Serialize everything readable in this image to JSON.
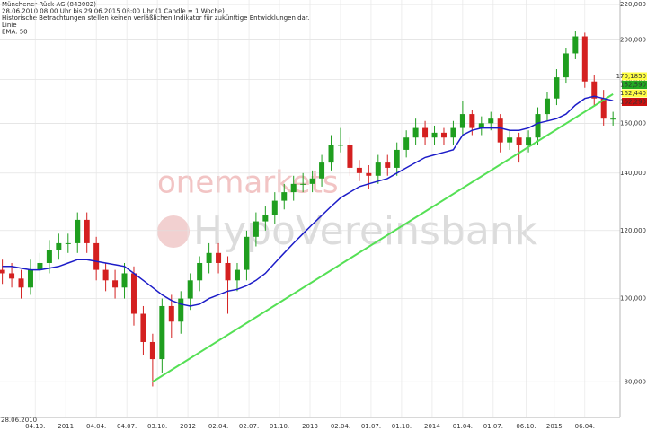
{
  "chart_data": {
    "type": "candlestick",
    "header": [
      "Münchener Rück AG (843002)",
      "28.06.2010 08:00 Uhr bis 29.06.2015 08:00 Uhr (1 Candle = 1 Woche)",
      "Historische Betrachtungen stellen keinen verläßlichen Indikator für zukünftige Entwicklungen dar.",
      "Linie",
      "EMA: 50"
    ],
    "watermark": [
      "onemarkets",
      "HypoVereinsbank"
    ],
    "x_start_label": "28.06.2010",
    "log_scale": true,
    "grid": true,
    "xlim": [
      -1,
      263
    ],
    "ylim": [
      72.7,
      222.7
    ],
    "xticks": [
      {
        "value": 14,
        "label": "04.10."
      },
      {
        "value": 27,
        "label": "2011"
      },
      {
        "value": 40,
        "label": "04.04."
      },
      {
        "value": 53,
        "label": "04.07."
      },
      {
        "value": 66,
        "label": "03.10."
      },
      {
        "value": 79,
        "label": "2012"
      },
      {
        "value": 92,
        "label": "02.04."
      },
      {
        "value": 105,
        "label": "02.07."
      },
      {
        "value": 118,
        "label": "01.10."
      },
      {
        "value": 131,
        "label": "2013"
      },
      {
        "value": 144,
        "label": "02.04."
      },
      {
        "value": 157,
        "label": "01.07."
      },
      {
        "value": 170,
        "label": "01.10."
      },
      {
        "value": 183,
        "label": "2014"
      },
      {
        "value": 196,
        "label": "01.04."
      },
      {
        "value": 209,
        "label": "01.07."
      },
      {
        "value": 223,
        "label": "06.10."
      },
      {
        "value": 235,
        "label": "2015"
      },
      {
        "value": 248,
        "label": "06.04."
      }
    ],
    "yticks": [
      {
        "value": 80,
        "label": "80,000"
      },
      {
        "value": 100,
        "label": "100,000"
      },
      {
        "value": 120,
        "label": "120,000"
      },
      {
        "value": 140,
        "label": "140,000"
      },
      {
        "value": 160,
        "label": "160,000"
      },
      {
        "value": 180,
        "label": "180,000"
      },
      {
        "value": 200,
        "label": "200,000"
      },
      {
        "value": 220,
        "label": "220,000"
      }
    ],
    "x": [
      0,
      4,
      8,
      12,
      16,
      20,
      24,
      28,
      32,
      36,
      40,
      44,
      48,
      52,
      56,
      60,
      64,
      68,
      72,
      76,
      80,
      84,
      88,
      92,
      96,
      100,
      104,
      108,
      112,
      116,
      120,
      124,
      128,
      132,
      136,
      140,
      144,
      148,
      152,
      156,
      160,
      164,
      168,
      172,
      176,
      180,
      184,
      188,
      192,
      196,
      200,
      204,
      208,
      212,
      216,
      220,
      224,
      228,
      232,
      236,
      240,
      244,
      248,
      252,
      256,
      260
    ],
    "open": [
      108,
      107,
      105.5,
      103,
      108,
      110,
      114,
      116,
      116,
      123.5,
      116,
      108,
      105,
      103,
      107,
      96,
      89,
      85,
      98,
      94,
      100,
      105,
      110,
      113,
      110,
      105,
      108,
      118,
      123,
      125,
      130,
      133,
      136,
      136,
      138,
      144,
      151,
      151,
      142,
      140,
      139,
      144,
      142,
      149,
      154,
      158,
      154,
      156,
      154,
      158,
      164,
      158,
      160,
      162,
      152,
      154,
      151,
      154,
      164,
      171,
      181,
      193,
      202,
      179,
      171,
      162
    ],
    "high": [
      111,
      110,
      108,
      111,
      113,
      117,
      119,
      119,
      126,
      126,
      118,
      110,
      108,
      110,
      109,
      98,
      91,
      100,
      101,
      102,
      107,
      112,
      116,
      116,
      112,
      110,
      120,
      126,
      128,
      133,
      136,
      139,
      140,
      141,
      147,
      155,
      158,
      154,
      145,
      143,
      147,
      147,
      152,
      157,
      162,
      161,
      159,
      158,
      161,
      170,
      166,
      163,
      165,
      164,
      157,
      156,
      157,
      167,
      174,
      185,
      196,
      205,
      204,
      182,
      175,
      165
    ],
    "low": [
      104,
      103,
      100,
      101,
      105,
      107,
      111,
      113,
      113,
      113,
      105,
      102,
      100,
      100,
      93,
      86,
      79,
      82,
      90,
      91,
      97,
      102,
      107,
      107,
      96,
      102,
      105,
      115,
      120,
      122,
      127,
      130,
      133,
      133,
      135,
      141,
      148,
      139,
      137,
      134,
      136,
      139,
      139,
      146,
      151,
      151,
      151,
      151,
      151,
      155,
      155,
      155,
      157,
      148,
      149,
      144,
      148,
      151,
      161,
      168,
      178,
      190,
      176,
      168,
      159,
      159
    ],
    "close": [
      107,
      105.5,
      103,
      108,
      110,
      114,
      116,
      116,
      123.5,
      116,
      108,
      105,
      103,
      107,
      96,
      89,
      85,
      98,
      94,
      100,
      105,
      110,
      113,
      110,
      105,
      108,
      118,
      123,
      125,
      130,
      133,
      136,
      136,
      138,
      144,
      151,
      151,
      142,
      140,
      139,
      144,
      142,
      149,
      154,
      158,
      154,
      156,
      154,
      158,
      164,
      158,
      160,
      162,
      152,
      154,
      151,
      154,
      164,
      171,
      181,
      193,
      202,
      179,
      171,
      162,
      162
    ],
    "up_color": "#1f9e1f",
    "down_color": "#d42020",
    "ema": {
      "color": "#1c1cc8",
      "values": [
        109,
        109,
        108.5,
        108,
        108,
        108.5,
        109,
        110,
        111,
        111,
        110.5,
        110,
        109.5,
        109,
        107,
        105,
        103,
        101,
        99.5,
        98.5,
        98,
        98.5,
        100,
        101,
        102,
        102.5,
        103.5,
        105,
        107,
        110,
        113,
        116,
        119,
        122,
        125,
        128,
        131,
        133,
        135,
        136,
        137,
        138,
        140,
        142,
        144,
        146,
        147,
        148,
        149,
        155,
        157,
        158,
        158,
        158,
        157,
        157,
        158,
        160,
        161,
        162,
        164,
        168,
        171,
        172,
        171,
        170
      ]
    },
    "trendline": {
      "color": "#55e055",
      "x": [
        64,
        260
      ],
      "values": [
        80,
        173
      ]
    },
    "price_labels": [
      {
        "value": 170.185,
        "label": "170,1850",
        "color": "#ffff44"
      },
      {
        "value": 162.59,
        "label": "162,590",
        "color": "#22aa22"
      },
      {
        "value": 162.44,
        "label": "162,440",
        "color": "#ffff44"
      },
      {
        "value": 162.29,
        "label": "162,290",
        "color": "#cc1111"
      }
    ]
  }
}
